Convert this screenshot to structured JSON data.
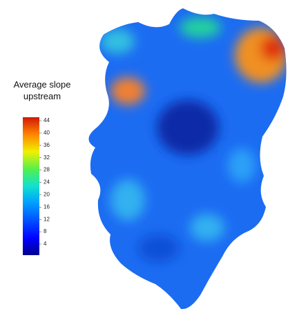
{
  "legend": {
    "title": "Average slope upstream",
    "ticks": [
      4,
      8,
      12,
      16,
      20,
      24,
      28,
      32,
      36,
      40,
      44
    ]
  }
}
